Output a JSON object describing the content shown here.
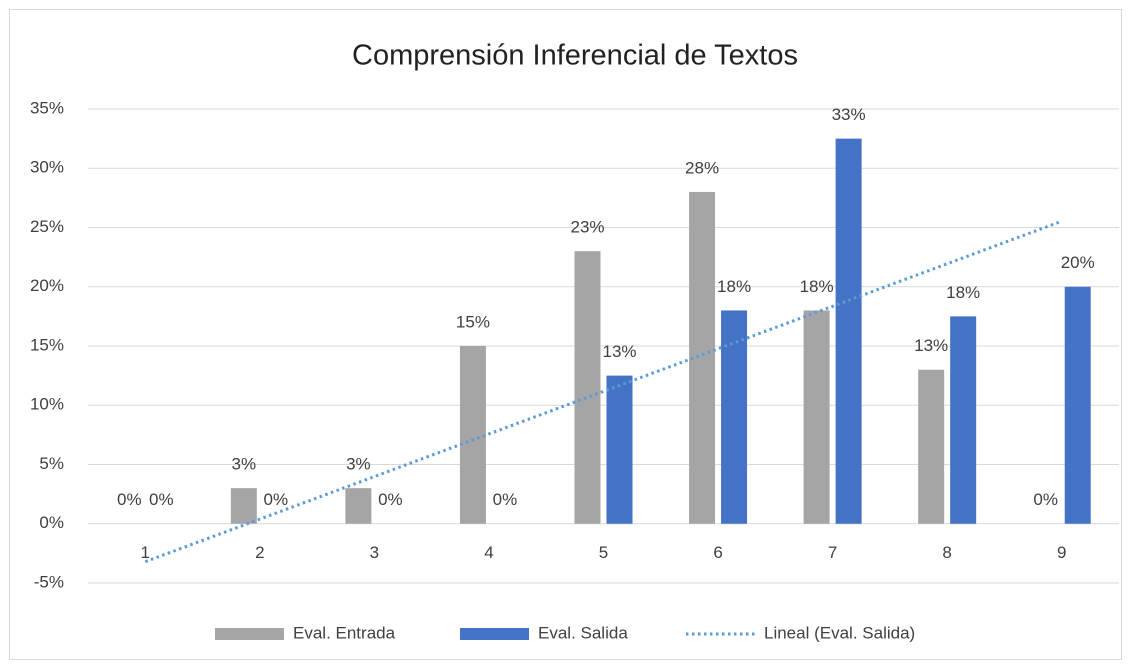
{
  "chart_data": {
    "type": "bar",
    "title": "Comprensión Inferencial de Textos",
    "categories": [
      "1",
      "2",
      "3",
      "4",
      "5",
      "6",
      "7",
      "8",
      "9"
    ],
    "series": [
      {
        "name": "Eval. Entrada",
        "color": "#a5a5a5",
        "values": [
          0,
          3,
          3,
          15,
          23,
          28,
          18,
          13,
          0
        ],
        "value_labels": [
          "0%",
          "3%",
          "3%",
          "15%",
          "23%",
          "28%",
          "18%",
          "13%",
          "0%"
        ]
      },
      {
        "name": "Eval. Salida",
        "color": "#4472c4",
        "values": [
          0,
          0,
          0,
          0,
          12.5,
          18,
          32.5,
          17.5,
          20
        ],
        "value_labels": [
          "0%",
          "0%",
          "0%",
          "0%",
          "13%",
          "18%",
          "33%",
          "18%",
          "20%"
        ]
      },
      {
        "name": "Lineal (Eval. Salida)",
        "type": "line",
        "color": "#5b9bd5",
        "dotted": true,
        "values": [
          -3.2,
          0.39,
          3.98,
          7.58,
          11.17,
          14.76,
          18.35,
          21.94,
          25.53
        ]
      }
    ],
    "ylim": [
      -5,
      35
    ],
    "yticks": [
      {
        "value": -5,
        "label": "-5%"
      },
      {
        "value": 0,
        "label": "0%"
      },
      {
        "value": 5,
        "label": "5%"
      },
      {
        "value": 10,
        "label": "10%"
      },
      {
        "value": 15,
        "label": "15%"
      },
      {
        "value": 20,
        "label": "20%"
      },
      {
        "value": 25,
        "label": "25%"
      },
      {
        "value": 30,
        "label": "30%"
      },
      {
        "value": 35,
        "label": "35%"
      }
    ],
    "grid": true,
    "legend": "bottom"
  }
}
